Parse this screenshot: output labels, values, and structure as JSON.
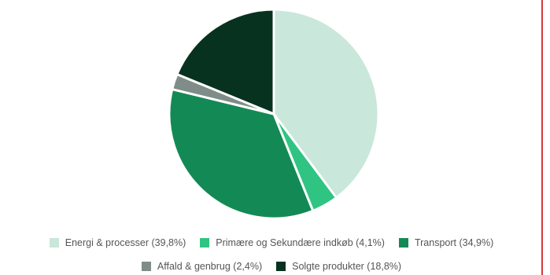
{
  "chart_data": {
    "type": "pie",
    "slices": [
      {
        "label": "Energi & processer (39,8%)",
        "value": 39.8,
        "color": "#c9e7da"
      },
      {
        "label": "Primære og Sekundære indkøb (4,1%)",
        "value": 4.1,
        "color": "#2fc482"
      },
      {
        "label": "Transport (34,9%)",
        "value": 34.9,
        "color": "#138a55"
      },
      {
        "label": "Affald & genbrug (2,4%)",
        "value": 2.4,
        "color": "#7f8c88"
      },
      {
        "label": "Solgte produkter (18,8%)",
        "value": 18.8,
        "color": "#07321f"
      }
    ],
    "legend_position": "bottom",
    "start": "top, clockwise"
  }
}
